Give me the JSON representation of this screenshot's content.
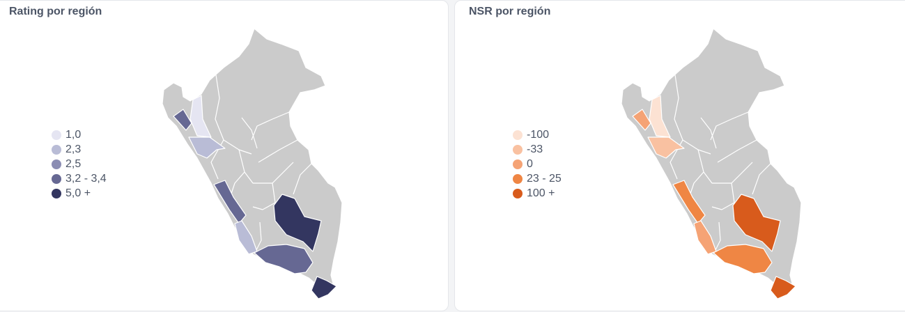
{
  "panels": [
    {
      "title": "Rating por región",
      "legend": [
        {
          "label": "1,0",
          "color": "#e5e5f2"
        },
        {
          "label": "2,3",
          "color": "#b9bcd6"
        },
        {
          "label": "2,5",
          "color": "#8b8db3"
        },
        {
          "label": "3,2 - 3,4",
          "color": "#666893"
        },
        {
          "label": "5,0 +",
          "color": "#333660"
        }
      ]
    },
    {
      "title": "NSR por región",
      "legend": [
        {
          "label": "-100",
          "color": "#fce2d3"
        },
        {
          "label": "-33",
          "color": "#f9c1a1"
        },
        {
          "label": "0",
          "color": "#f5a375"
        },
        {
          "label": "23 - 25",
          "color": "#ef8644"
        },
        {
          "label": "100 +",
          "color": "#d85b1c"
        }
      ]
    }
  ],
  "colors": {
    "no_data": "#cbcbcb",
    "region_border": "#ffffff"
  }
}
